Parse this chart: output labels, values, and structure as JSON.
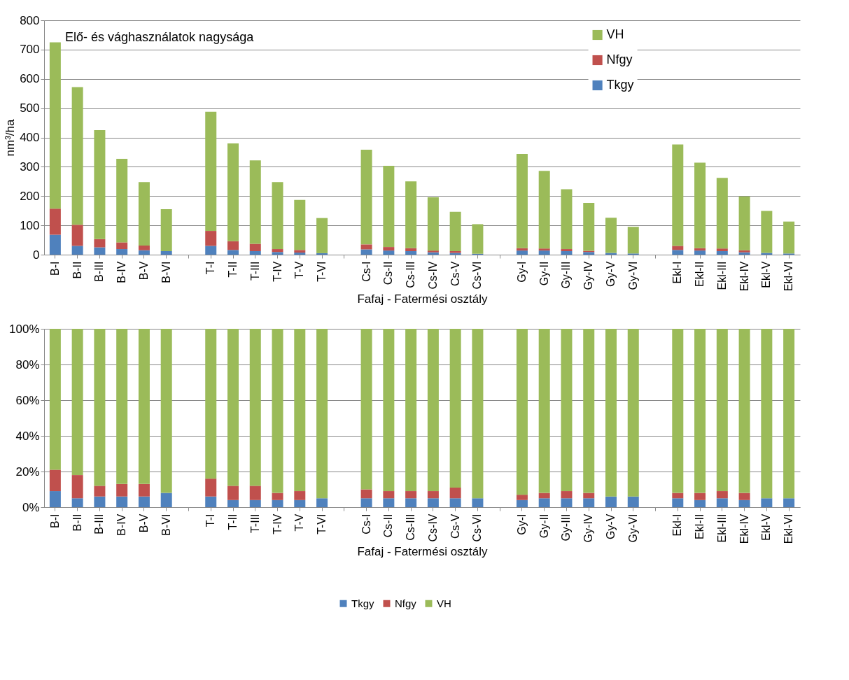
{
  "chart_data": [
    {
      "type": "bar",
      "title": "Elő- és vághasználatok nagysága",
      "xlabel": "Fafaj - Fatermési osztály",
      "ylabel": "nm³/ha",
      "stacked": true,
      "grid": "y",
      "legend": "top right",
      "ylim": [
        0,
        800
      ],
      "yticks": [
        0,
        100,
        200,
        300,
        400,
        500,
        600,
        700,
        800
      ],
      "categories": [
        "B-I",
        "B-II",
        "B-III",
        "B-IV",
        "B-V",
        "B-VI",
        null,
        "T-I",
        "T-II",
        "T-III",
        "T-IV",
        "T-V",
        "T-VI",
        null,
        "Cs-I",
        "Cs-II",
        "Cs-III",
        "Cs-IV",
        "Cs-V",
        "Cs-VI",
        null,
        "Gy-I",
        "Gy-II",
        "Gy-III",
        "Gy-IV",
        "Gy-V",
        "Gy-VI",
        null,
        "Ekl-I",
        "Ekl-II",
        "Ekl-III",
        "Ekl-IV",
        "Ekl-V",
        "Ekl-VI"
      ],
      "series": [
        {
          "name": "Tkgy",
          "color": "#4f81bd",
          "values": [
            68,
            30,
            25,
            19,
            15,
            12,
            null,
            30,
            16,
            12,
            9,
            7,
            5,
            null,
            18,
            14,
            12,
            8,
            6,
            3,
            null,
            14,
            14,
            12,
            9,
            6,
            4,
            null,
            16,
            14,
            12,
            8,
            6,
            4
          ]
        },
        {
          "name": "Nfgy",
          "color": "#c0504d",
          "values": [
            89,
            72,
            28,
            23,
            16,
            0,
            null,
            51,
            30,
            25,
            10,
            9,
            0,
            null,
            17,
            12,
            10,
            6,
            6,
            0,
            null,
            8,
            7,
            7,
            4,
            0,
            0,
            null,
            14,
            8,
            9,
            7,
            0,
            0
          ]
        },
        {
          "name": "VH",
          "color": "#9bbb59",
          "values": [
            568,
            470,
            372,
            285,
            217,
            143,
            null,
            407,
            334,
            285,
            229,
            171,
            120,
            null,
            323,
            277,
            228,
            182,
            134,
            101,
            null,
            322,
            265,
            204,
            164,
            120,
            91,
            null,
            346,
            292,
            241,
            184,
            143,
            109
          ]
        }
      ]
    },
    {
      "type": "bar",
      "xlabel": "Fafaj - Fatermési osztály",
      "stacked": true,
      "grid": "y",
      "legend": "bottom",
      "ylim": [
        0,
        100
      ],
      "yticks": [
        {
          "value": 0,
          "label": "0%"
        },
        {
          "value": 20,
          "label": "20%"
        },
        {
          "value": 40,
          "label": "40%"
        },
        {
          "value": 60,
          "label": "60%"
        },
        {
          "value": 80,
          "label": "80%"
        },
        {
          "value": 100,
          "label": "100%"
        }
      ],
      "categories": [
        "B-I",
        "B-II",
        "B-III",
        "B-IV",
        "B-V",
        "B-VI",
        null,
        "T-I",
        "T-II",
        "T-III",
        "T-IV",
        "T-V",
        "T-VI",
        null,
        "Cs-I",
        "Cs-II",
        "Cs-III",
        "Cs-IV",
        "Cs-V",
        "Cs-VI",
        null,
        "Gy-I",
        "Gy-II",
        "Gy-III",
        "Gy-IV",
        "Gy-V",
        "Gy-VI",
        null,
        "Ekl-I",
        "Ekl-II",
        "Ekl-III",
        "Ekl-IV",
        "Ekl-V",
        "Ekl-VI"
      ],
      "series": [
        {
          "name": "Tkgy",
          "color": "#4f81bd",
          "values": [
            9,
            5,
            6,
            6,
            6,
            8,
            null,
            6,
            4,
            4,
            4,
            4,
            5,
            null,
            5,
            5,
            5,
            5,
            5,
            5,
            null,
            4,
            5,
            5,
            5,
            6,
            6,
            null,
            5,
            4,
            5,
            4,
            5,
            5
          ]
        },
        {
          "name": "Nfgy",
          "color": "#c0504d",
          "values": [
            12,
            13,
            6,
            7,
            7,
            0,
            null,
            10,
            8,
            8,
            4,
            5,
            0,
            null,
            5,
            4,
            4,
            4,
            6,
            0,
            null,
            3,
            3,
            4,
            3,
            0,
            0,
            null,
            3,
            4,
            4,
            4,
            0,
            0
          ]
        },
        {
          "name": "VH",
          "color": "#9bbb59",
          "values": [
            79,
            82,
            88,
            87,
            87,
            92,
            null,
            84,
            88,
            88,
            92,
            91,
            95,
            null,
            90,
            91,
            91,
            91,
            89,
            95,
            null,
            93,
            92,
            91,
            92,
            94,
            94,
            null,
            92,
            92,
            91,
            92,
            95,
            95
          ]
        }
      ]
    }
  ]
}
